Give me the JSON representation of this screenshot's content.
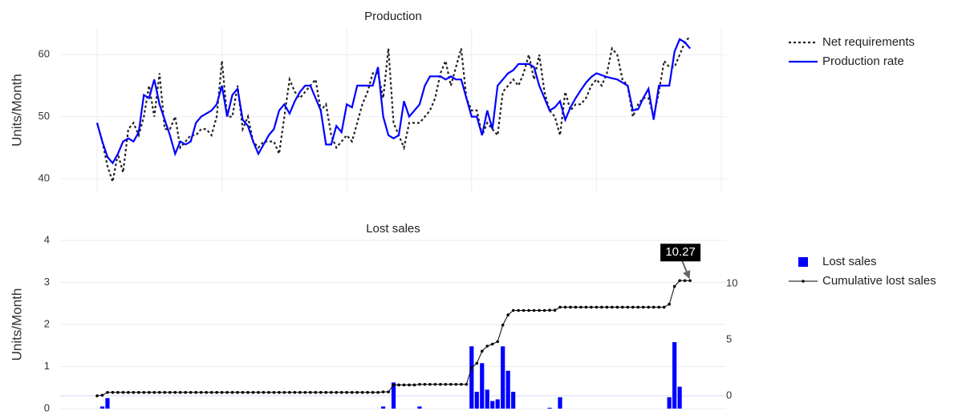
{
  "chart_data": [
    {
      "type": "line",
      "title": "Production",
      "y_label": "Units/Month",
      "xlim": [
        0,
        120
      ],
      "xticks": [
        0,
        24,
        48,
        72,
        96,
        120
      ],
      "ylim": [
        37.8,
        64.3
      ],
      "yticks": [
        40,
        50,
        60
      ],
      "grid": true,
      "legend": "right",
      "series": [
        {
          "name": "Net requirements",
          "color": "#222222",
          "dash": "dot",
          "values": [
            49,
            46,
            42,
            39.5,
            44,
            41,
            48,
            49,
            47,
            50,
            55,
            50,
            57,
            48,
            48,
            50,
            45,
            46,
            47,
            47,
            48,
            48,
            47,
            50,
            59,
            50,
            50,
            55,
            48,
            50,
            46,
            45,
            46,
            46,
            46,
            44,
            50,
            56,
            54,
            53,
            54,
            55,
            56,
            51,
            52,
            47,
            45,
            46,
            47,
            46,
            49,
            52,
            54,
            57,
            57,
            53,
            61,
            49,
            47,
            45,
            49,
            49,
            49,
            50,
            51,
            53,
            57,
            59,
            55,
            58,
            61,
            53,
            51,
            51,
            47,
            49,
            48,
            47,
            54,
            55,
            56,
            55,
            57,
            60,
            56,
            60,
            54,
            51,
            50,
            47,
            54,
            51,
            52,
            52,
            53,
            55,
            56,
            55,
            57,
            61,
            60,
            56,
            55,
            50,
            52,
            53,
            53,
            50,
            54,
            59,
            58,
            58,
            60,
            62,
            63
          ]
        },
        {
          "name": "Production rate",
          "color": "#0000ff",
          "dash": "solid",
          "values": [
            49,
            46,
            43.5,
            42.5,
            44,
            46,
            46.5,
            46,
            47.5,
            53.5,
            53,
            56,
            52,
            49.5,
            47,
            44,
            46,
            45.5,
            46,
            49,
            50,
            50.5,
            51,
            52,
            55,
            50,
            53.5,
            54.5,
            49.5,
            48.5,
            46,
            44,
            45.5,
            47,
            48,
            51,
            52,
            50.5,
            52.5,
            54,
            55,
            55,
            53,
            51,
            45.5,
            45.5,
            48.5,
            47.5,
            52,
            51.5,
            55,
            55,
            55,
            55,
            58,
            50,
            47,
            46.5,
            47,
            52.5,
            50,
            51,
            52,
            55,
            56.5,
            56.5,
            56.5,
            56,
            56.5,
            56,
            56,
            53,
            50,
            50,
            47,
            51,
            48,
            55,
            56,
            57,
            57.5,
            58.5,
            58.5,
            58.5,
            58,
            55,
            53,
            51,
            51.5,
            52.5,
            49.5,
            51.5,
            53,
            54.3,
            55.5,
            56.4,
            57,
            56.7,
            56.4,
            56.2,
            56,
            55.5,
            55,
            51,
            51.2,
            53,
            54.5,
            49.5,
            55,
            55,
            55,
            60.5,
            62.5,
            62,
            61
          ]
        }
      ]
    },
    {
      "type": "combo",
      "title": "Lost sales",
      "y_label": "Units/Month",
      "xlim": [
        0,
        120
      ],
      "ylim": [
        0,
        4
      ],
      "yticks": [
        0,
        1,
        2,
        3,
        4
      ],
      "y2lim": [
        -1.14,
        13.86
      ],
      "y2ticks": [
        0,
        5,
        10
      ],
      "grid": true,
      "legend": "right",
      "annotation": "10.27",
      "series": [
        {
          "name": "Lost sales",
          "kind": "bar",
          "color": "#0000ff",
          "values": [
            0,
            0.05,
            0.25,
            0,
            0,
            0,
            0,
            0,
            0,
            0,
            0,
            0,
            0,
            0,
            0,
            0,
            0,
            0,
            0,
            0,
            0,
            0,
            0,
            0,
            0,
            0,
            0,
            0,
            0,
            0,
            0,
            0,
            0,
            0,
            0,
            0,
            0,
            0,
            0,
            0,
            0,
            0,
            0,
            0,
            0,
            0,
            0,
            0,
            0,
            0,
            0,
            0,
            0,
            0,
            0,
            0.05,
            0,
            0.62,
            0,
            0,
            0,
            0,
            0.05,
            0,
            0,
            0,
            0,
            0,
            0,
            0,
            0,
            0,
            1.48,
            0.4,
            1.08,
            0.45,
            0.18,
            0.22,
            1.48,
            0.9,
            0.4,
            0,
            0,
            0,
            0,
            0,
            0,
            0.02,
            0,
            0.27,
            0,
            0,
            0,
            0,
            0,
            0,
            0,
            0,
            0,
            0,
            0,
            0,
            0,
            0,
            0,
            0,
            0,
            0,
            0,
            0,
            0.27,
            1.58,
            0.52,
            0,
            0
          ]
        },
        {
          "name": "Cumulative lost sales",
          "kind": "line",
          "axis": "y2",
          "color": "#000000",
          "values": [
            0,
            0.05,
            0.3,
            0.3,
            0.3,
            0.3,
            0.3,
            0.3,
            0.3,
            0.3,
            0.3,
            0.3,
            0.3,
            0.3,
            0.3,
            0.3,
            0.3,
            0.3,
            0.3,
            0.3,
            0.3,
            0.3,
            0.3,
            0.3,
            0.3,
            0.3,
            0.3,
            0.3,
            0.3,
            0.3,
            0.3,
            0.3,
            0.3,
            0.3,
            0.3,
            0.3,
            0.3,
            0.3,
            0.3,
            0.3,
            0.3,
            0.3,
            0.3,
            0.3,
            0.3,
            0.3,
            0.3,
            0.3,
            0.3,
            0.3,
            0.3,
            0.3,
            0.3,
            0.3,
            0.3,
            0.35,
            0.35,
            0.97,
            0.97,
            0.97,
            0.97,
            0.97,
            1.02,
            1.02,
            1.02,
            1.02,
            1.02,
            1.02,
            1.02,
            1.02,
            1.02,
            1.02,
            2.5,
            2.9,
            3.98,
            4.43,
            4.61,
            4.83,
            6.31,
            7.21,
            7.61,
            7.61,
            7.61,
            7.61,
            7.61,
            7.61,
            7.61,
            7.63,
            7.63,
            7.9,
            7.9,
            7.9,
            7.9,
            7.9,
            7.9,
            7.9,
            7.9,
            7.9,
            7.9,
            7.9,
            7.9,
            7.9,
            7.9,
            7.9,
            7.9,
            7.9,
            7.9,
            7.9,
            7.9,
            7.9,
            8.17,
            9.75,
            10.27,
            10.27,
            10.27
          ]
        }
      ]
    }
  ]
}
